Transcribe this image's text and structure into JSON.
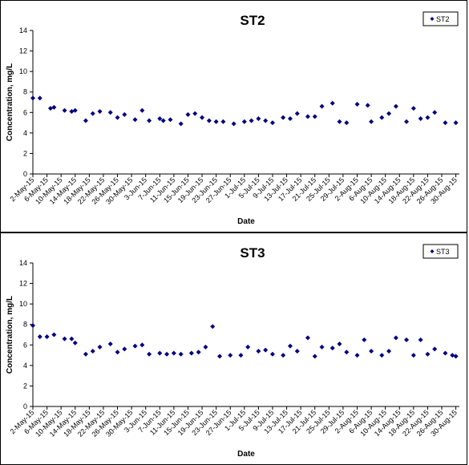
{
  "chart_data": [
    {
      "type": "scatter",
      "title": "ST2",
      "xlabel": "Date",
      "ylabel": "Concentration, mg/L",
      "ylim": [
        0,
        14
      ],
      "yticks": [
        0,
        2,
        4,
        6,
        8,
        10,
        12,
        14
      ],
      "xlim": [
        "2-May-15",
        "31-Aug-15"
      ],
      "xticks": [
        "2-May-15",
        "6-May-15",
        "10-May-15",
        "14-May-15",
        "18-May-15",
        "22-May-15",
        "26-May-15",
        "30-May-15",
        "3-Jun-15",
        "7-Jun-15",
        "11-Jun-15",
        "15-Jun-15",
        "19-Jun-15",
        "23-Jun-15",
        "27-Jun-15",
        "1-Jul-15",
        "5-Jul-15",
        "9-Jul-15",
        "13-Jul-15",
        "17-Jul-15",
        "21-Jul-15",
        "25-Jul-15",
        "29-Jul-15",
        "2-Aug-15",
        "6-Aug-15",
        "10-Aug-15",
        "14-Aug-15",
        "18-Aug-15",
        "22-Aug-15",
        "26-Aug-15",
        "30-Aug-15"
      ],
      "grid": false,
      "legend_position": "top-right",
      "marker_color": "#000080",
      "series": [
        {
          "name": "ST2",
          "x": [
            "2-May-15",
            "4-May-15",
            "7-May-15",
            "8-May-15",
            "11-May-15",
            "13-May-15",
            "14-May-15",
            "17-May-15",
            "19-May-15",
            "21-May-15",
            "24-May-15",
            "26-May-15",
            "28-May-15",
            "31-May-15",
            "2-Jun-15",
            "4-Jun-15",
            "7-Jun-15",
            "8-Jun-15",
            "10-Jun-15",
            "13-Jun-15",
            "15-Jun-15",
            "17-Jun-15",
            "19-Jun-15",
            "21-Jun-15",
            "23-Jun-15",
            "25-Jun-15",
            "28-Jun-15",
            "1-Jul-15",
            "3-Jul-15",
            "5-Jul-15",
            "7-Jul-15",
            "9-Jul-15",
            "12-Jul-15",
            "14-Jul-15",
            "16-Jul-15",
            "19-Jul-15",
            "21-Jul-15",
            "23-Jul-15",
            "26-Jul-15",
            "28-Jul-15",
            "30-Jul-15",
            "2-Aug-15",
            "5-Aug-15",
            "6-Aug-15",
            "9-Aug-15",
            "11-Aug-15",
            "13-Aug-15",
            "16-Aug-15",
            "18-Aug-15",
            "20-Aug-15",
            "22-Aug-15",
            "24-Aug-15",
            "27-Aug-15",
            "30-Aug-15"
          ],
          "values": [
            7.4,
            7.4,
            6.4,
            6.5,
            6.2,
            6.1,
            6.2,
            5.2,
            5.9,
            6.1,
            6.0,
            5.5,
            5.8,
            5.3,
            6.2,
            5.2,
            5.4,
            5.2,
            5.3,
            4.9,
            5.8,
            5.9,
            5.5,
            5.2,
            5.1,
            5.1,
            4.9,
            5.1,
            5.2,
            5.4,
            5.2,
            5.0,
            5.5,
            5.4,
            5.9,
            5.6,
            5.6,
            6.6,
            6.9,
            5.1,
            5.0,
            6.8,
            6.7,
            5.1,
            5.5,
            5.9,
            6.6,
            5.1,
            6.4,
            5.4,
            5.5,
            6.0,
            5.0,
            5.0
          ]
        }
      ]
    },
    {
      "type": "scatter",
      "title": "ST3",
      "xlabel": "Date",
      "ylabel": "Concentration, mg/L",
      "ylim": [
        0,
        14
      ],
      "yticks": [
        0,
        2,
        4,
        6,
        8,
        10,
        12,
        14
      ],
      "xlim": [
        "2-May-15",
        "31-Aug-15"
      ],
      "xticks": [
        "2-May-15",
        "6-May-15",
        "10-May-15",
        "14-May-15",
        "18-May-15",
        "22-May-15",
        "26-May-15",
        "30-May-15",
        "3-Jun-15",
        "7-Jun-15",
        "11-Jun-15",
        "15-Jun-15",
        "19-Jun-15",
        "23-Jun-15",
        "27-Jun-15",
        "1-Jul-15",
        "5-Jul-15",
        "9-Jul-15",
        "13-Jul-15",
        "17-Jul-15",
        "21-Jul-15",
        "25-Jul-15",
        "29-Jul-15",
        "2-Aug-15",
        "6-Aug-15",
        "10-Aug-15",
        "14-Aug-15",
        "18-Aug-15",
        "22-Aug-15",
        "26-Aug-15",
        "30-Aug-15"
      ],
      "grid": false,
      "legend_position": "top-right",
      "marker_color": "#000080",
      "series": [
        {
          "name": "ST3",
          "x": [
            "2-May-15",
            "4-May-15",
            "6-May-15",
            "8-May-15",
            "11-May-15",
            "13-May-15",
            "14-May-15",
            "17-May-15",
            "19-May-15",
            "21-May-15",
            "24-May-15",
            "26-May-15",
            "28-May-15",
            "31-May-15",
            "2-Jun-15",
            "4-Jun-15",
            "7-Jun-15",
            "9-Jun-15",
            "11-Jun-15",
            "13-Jun-15",
            "16-Jun-15",
            "18-Jun-15",
            "20-Jun-15",
            "22-Jun-15",
            "24-Jun-15",
            "27-Jun-15",
            "30-Jun-15",
            "2-Jul-15",
            "5-Jul-15",
            "7-Jul-15",
            "9-Jul-15",
            "12-Jul-15",
            "14-Jul-15",
            "16-Jul-15",
            "19-Jul-15",
            "21-Jul-15",
            "23-Jul-15",
            "26-Jul-15",
            "28-Jul-15",
            "30-Jul-15",
            "2-Aug-15",
            "4-Aug-15",
            "6-Aug-15",
            "9-Aug-15",
            "11-Aug-15",
            "13-Aug-15",
            "16-Aug-15",
            "18-Aug-15",
            "20-Aug-15",
            "22-Aug-15",
            "24-Aug-15",
            "27-Aug-15",
            "29-Aug-15",
            "30-Aug-15"
          ],
          "values": [
            7.9,
            6.8,
            6.8,
            7.0,
            6.6,
            6.6,
            6.2,
            5.1,
            5.4,
            5.8,
            6.1,
            5.3,
            5.6,
            5.9,
            6.0,
            5.1,
            5.2,
            5.1,
            5.2,
            5.1,
            5.2,
            5.3,
            5.8,
            7.8,
            4.9,
            5.0,
            5.0,
            5.8,
            5.4,
            5.5,
            5.1,
            5.0,
            5.9,
            5.4,
            6.7,
            4.9,
            5.8,
            5.7,
            6.1,
            5.3,
            5.0,
            6.5,
            5.4,
            5.0,
            5.4,
            6.7,
            6.5,
            5.0,
            6.5,
            5.1,
            5.6,
            5.2,
            5.0,
            4.9
          ]
        }
      ]
    }
  ]
}
